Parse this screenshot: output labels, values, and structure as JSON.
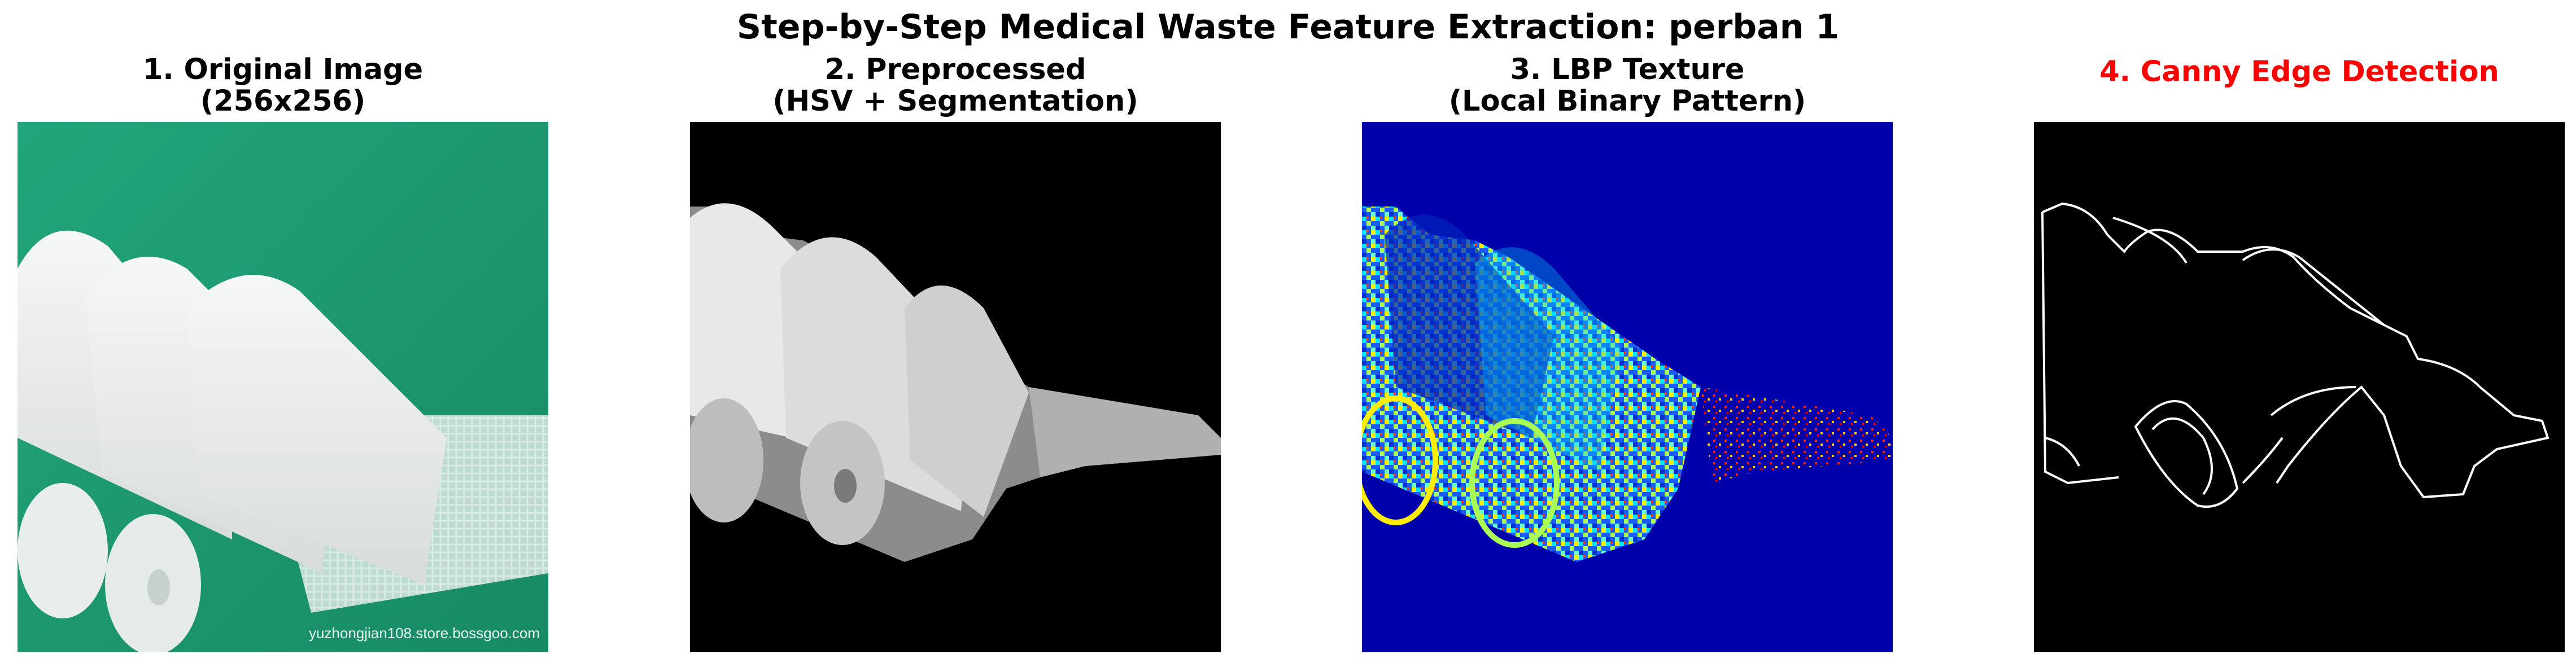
{
  "figure": {
    "title": "Step-by-Step Medical Waste Feature Extraction: perban 1"
  },
  "panels": [
    {
      "title_line1": "1. Original Image",
      "title_line2": "(256x256)",
      "watermark": "yuzhongjian108.store.bossgoo.com"
    },
    {
      "title_line1": "2. Preprocessed",
      "title_line2": "(HSV + Segmentation)"
    },
    {
      "title_line1": "3. LBP Texture",
      "title_line2": "(Local Binary Pattern)"
    },
    {
      "title_line1": "4. Canny Edge Detection",
      "title_color": "#ff0000"
    }
  ],
  "colors": {
    "original_background": "#1f9e77",
    "lbp_background": "#0000aa",
    "title_red": "#ff0000"
  }
}
